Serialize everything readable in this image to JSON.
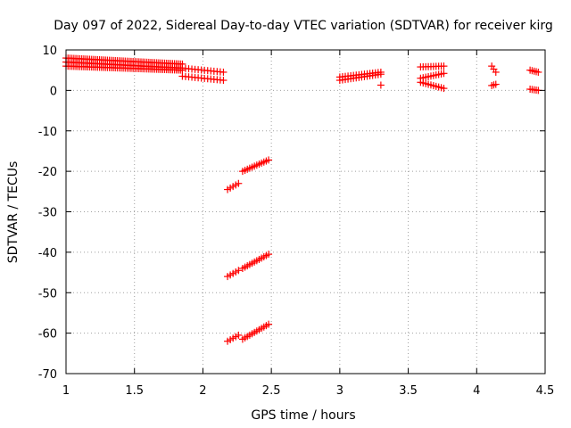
{
  "chart_data": {
    "type": "scatter",
    "title": "Day 097 of 2022, Sidereal Day-to-day VTEC variation (SDTVAR) for receiver kirg",
    "xlabel": "GPS time / hours",
    "ylabel": "SDTVAR / TECUs",
    "xlim": [
      1,
      4.5
    ],
    "ylim": [
      -70,
      10
    ],
    "xticks": [
      "1",
      "1.5",
      "2",
      "2.5",
      "3",
      "3.5",
      "4",
      "4.5"
    ],
    "yticks": [
      "10",
      "0",
      "-10",
      "-20",
      "-30",
      "-40",
      "-50",
      "-60",
      "-70"
    ],
    "grid": true,
    "marker": "+",
    "color": "#ff0000",
    "segments": [
      {
        "x0": 1.0,
        "x1": 1.85,
        "y0": 8.0,
        "y1": 6.5,
        "n": 60
      },
      {
        "x0": 1.0,
        "x1": 1.85,
        "y0": 7.0,
        "y1": 5.5,
        "n": 60
      },
      {
        "x0": 1.0,
        "x1": 1.85,
        "y0": 6.0,
        "y1": 5.0,
        "n": 60
      },
      {
        "x0": 1.85,
        "x1": 2.15,
        "y0": 5.5,
        "y1": 4.5,
        "n": 14
      },
      {
        "x0": 1.85,
        "x1": 2.15,
        "y0": 3.5,
        "y1": 2.5,
        "n": 14
      },
      {
        "x0": 2.18,
        "x1": 2.26,
        "y0": -24.5,
        "y1": -23.0,
        "n": 5
      },
      {
        "x0": 2.29,
        "x1": 2.48,
        "y0": -20.0,
        "y1": -17.2,
        "n": 12
      },
      {
        "x0": 2.18,
        "x1": 2.26,
        "y0": -46.0,
        "y1": -44.5,
        "n": 5
      },
      {
        "x0": 2.29,
        "x1": 2.48,
        "y0": -44.0,
        "y1": -40.5,
        "n": 12
      },
      {
        "x0": 2.18,
        "x1": 2.26,
        "y0": -62.0,
        "y1": -60.5,
        "n": 5
      },
      {
        "x0": 2.29,
        "x1": 2.48,
        "y0": -61.5,
        "y1": -57.8,
        "n": 12
      },
      {
        "x0": 3.0,
        "x1": 3.3,
        "y0": 2.5,
        "y1": 4.0,
        "n": 16
      },
      {
        "x0": 3.0,
        "x1": 3.3,
        "y0": 3.3,
        "y1": 4.5,
        "n": 16
      },
      {
        "x0": 3.3,
        "x1": 3.3,
        "y0": 1.3,
        "y1": 1.3,
        "n": 1
      },
      {
        "x0": 3.59,
        "x1": 3.76,
        "y0": 5.8,
        "y1": 6.0,
        "n": 10
      },
      {
        "x0": 3.59,
        "x1": 3.76,
        "y0": 3.0,
        "y1": 4.2,
        "n": 10
      },
      {
        "x0": 3.59,
        "x1": 3.76,
        "y0": 2.0,
        "y1": 0.5,
        "n": 10
      },
      {
        "x0": 4.11,
        "x1": 4.14,
        "y0": 6.0,
        "y1": 4.5,
        "n": 3
      },
      {
        "x0": 4.11,
        "x1": 4.14,
        "y0": 1.2,
        "y1": 1.5,
        "n": 3
      },
      {
        "x0": 4.39,
        "x1": 4.45,
        "y0": 5.0,
        "y1": 4.5,
        "n": 5
      },
      {
        "x0": 4.39,
        "x1": 4.45,
        "y0": 0.3,
        "y1": 0.0,
        "n": 5
      }
    ]
  }
}
